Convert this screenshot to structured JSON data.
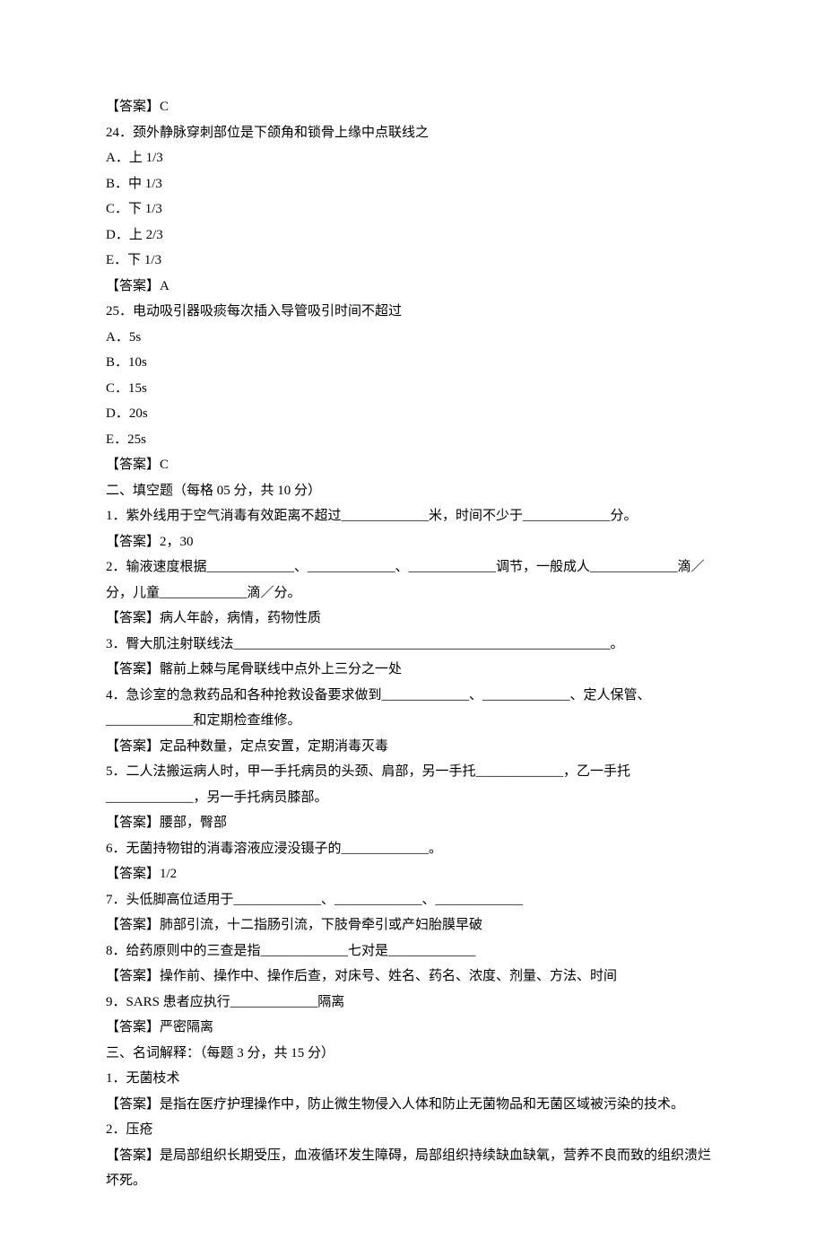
{
  "lines": [
    "【答案】C",
    "24．颈外静脉穿刺部位是下颌角和锁骨上缘中点联线之",
    "A．上 1/3",
    "B．中 1/3",
    "C．下 1/3",
    "D．上 2/3",
    "E．下 1/3",
    "【答案】A",
    "25．电动吸引器吸痰每次插入导管吸引时间不超过",
    "A．5s",
    "B．10s",
    "C．15s",
    "D．20s",
    "E．25s",
    "【答案】C",
    "二、填空题（每格 05 分，共 10 分）",
    "1．紫外线用于空气消毒有效距离不超过_____________米，时间不少于_____________分。",
    "【答案】2，30",
    "2．输液速度根据_____________、_____________、_____________调节，一般成人_____________滴／分，儿童_____________滴／分。",
    "【答案】病人年龄，病情，药物性质",
    "3．臀大肌注射联线法________________________________________________________。",
    "【答案】髂前上棘与尾骨联线中点外上三分之一处",
    "4．急诊室的急救药品和各种抢救设备要求做到_____________、_____________、定人保管、_____________和定期检查维修。",
    "【答案】定品种数量，定点安置，定期消毒灭毒",
    "5．二人法搬运病人时，甲一手托病员的头颈、肩部，另一手托_____________，乙一手托_____________，另一手托病员膝部。",
    "【答案】腰部，臀部",
    "6．无菌持物钳的消毒溶液应浸没镊子的_____________。",
    "【答案】1/2",
    "7．头低脚高位适用于_____________、_____________、_____________",
    "【答案】肺部引流，十二指肠引流，下肢骨牵引或产妇胎膜早破",
    "8．给药原则中的三查是指_____________七对是_____________",
    "【答案】操作前、操作中、操作后查，对床号、姓名、药名、浓度、剂量、方法、时间",
    "9．SARS 患者应执行_____________隔离",
    "【答案】严密隔离",
    "三、名词解释：（每题 3 分，共 15 分）",
    "1．无菌枝术",
    "【答案】是指在医疗护理操作中，防止微生物侵入人体和防止无菌物品和无菌区域被污染的技术。",
    "2．压疮",
    "【答案】是局部组织长期受压，血液循环发生障碍，局部组织持续缺血缺氧，营养不良而致的组织溃烂坏死。"
  ]
}
